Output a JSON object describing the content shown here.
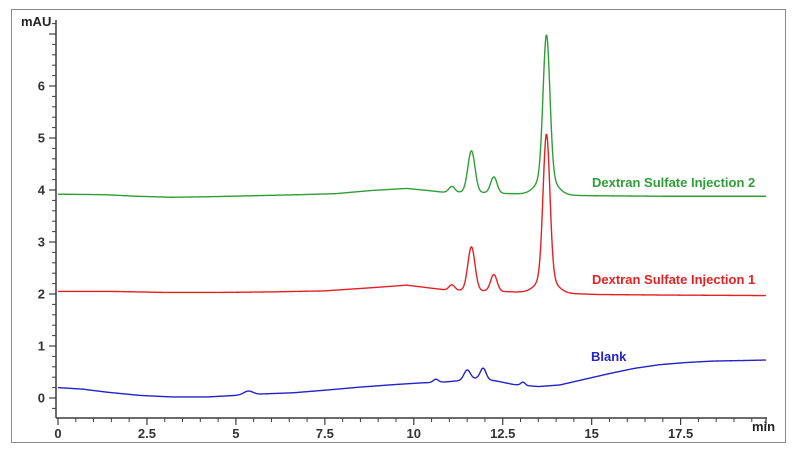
{
  "figure": {
    "background": "#ffffff",
    "border_color": "#8a8a8a",
    "axis_color": "#3c3c3c",
    "tick_label_color": "#333333"
  },
  "chart_data": {
    "type": "line",
    "title": "",
    "xlabel": "min",
    "ylabel": "mAU",
    "x_range": [
      0,
      19.9
    ],
    "y_range": [
      -0.4,
      7.3
    ],
    "grid": false,
    "legend_position": "inline-right-of-trace",
    "x_axis": {
      "major_ticks": [
        0,
        2.5,
        5,
        7.5,
        10,
        12.5,
        15,
        17.5
      ],
      "tick_labels": [
        "0",
        "2.5",
        "5",
        "7.5",
        "10",
        "12.5",
        "15",
        "17.5"
      ],
      "minor_step": 0.5,
      "end_tick": 19.9
    },
    "y_axis": {
      "major_ticks": [
        0,
        1,
        2,
        3,
        4,
        5,
        6,
        7
      ],
      "tick_labels": [
        "0",
        "1",
        "2",
        "3",
        "4",
        "5",
        "6",
        ""
      ],
      "minor_step": 0.2
    },
    "series": [
      {
        "name": "dextran-sulfate-injection-2",
        "label": "Dextran Sulfate Injection 2",
        "color": "#2f9e38",
        "baseline_offset_mAU": 3.9,
        "main_peak": {
          "retention_min": 13.73,
          "apex_mAU": 7.0
        },
        "baseline_points": [
          [
            0,
            3.92
          ],
          [
            1.3,
            3.91
          ],
          [
            2.2,
            3.88
          ],
          [
            3.2,
            3.86
          ],
          [
            4.2,
            3.87
          ],
          [
            5.5,
            3.89
          ],
          [
            6.8,
            3.91
          ],
          [
            7.8,
            3.93
          ],
          [
            8.8,
            3.99
          ],
          [
            9.8,
            4.03
          ],
          [
            10.4,
            3.99
          ],
          [
            10.8,
            3.96
          ],
          [
            11.3,
            3.96
          ],
          [
            12.0,
            3.95
          ],
          [
            12.7,
            3.93
          ],
          [
            13.3,
            3.92
          ],
          [
            14.2,
            3.9
          ],
          [
            15.0,
            3.89
          ],
          [
            17.0,
            3.88
          ],
          [
            19.9,
            3.88
          ]
        ],
        "peaks": [
          {
            "center": 11.07,
            "height": 0.11,
            "sigma": 0.08
          },
          {
            "center": 11.62,
            "height": 0.8,
            "sigma": 0.1
          },
          {
            "center": 12.25,
            "height": 0.31,
            "sigma": 0.09
          },
          {
            "center": 13.73,
            "height": 2.72,
            "sigma": 0.095
          },
          {
            "center": 13.73,
            "height": 0.36,
            "sigma": 0.26
          }
        ]
      },
      {
        "name": "dextran-sulfate-injection-1",
        "label": "Dextran Sulfate Injection 1",
        "color": "#e32124",
        "baseline_offset_mAU": 2.0,
        "main_peak": {
          "retention_min": 13.73,
          "apex_mAU": 5.1
        },
        "baseline_points": [
          [
            0,
            2.05
          ],
          [
            1.5,
            2.05
          ],
          [
            3.0,
            2.03
          ],
          [
            4.5,
            2.03
          ],
          [
            6.0,
            2.04
          ],
          [
            7.5,
            2.06
          ],
          [
            8.8,
            2.12
          ],
          [
            9.8,
            2.17
          ],
          [
            10.4,
            2.12
          ],
          [
            10.9,
            2.08
          ],
          [
            11.4,
            2.07
          ],
          [
            12.1,
            2.06
          ],
          [
            12.8,
            2.04
          ],
          [
            13.4,
            2.03
          ],
          [
            14.3,
            2.01
          ],
          [
            15.2,
            1.99
          ],
          [
            17.0,
            1.98
          ],
          [
            19.9,
            1.97
          ]
        ],
        "peaks": [
          {
            "center": 11.07,
            "height": 0.1,
            "sigma": 0.08
          },
          {
            "center": 11.62,
            "height": 0.84,
            "sigma": 0.1
          },
          {
            "center": 12.25,
            "height": 0.32,
            "sigma": 0.09
          },
          {
            "center": 13.73,
            "height": 2.75,
            "sigma": 0.095
          },
          {
            "center": 13.73,
            "height": 0.31,
            "sigma": 0.26
          }
        ]
      },
      {
        "name": "blank",
        "label": "Blank",
        "color": "#2323c8",
        "baseline_offset_mAU": 0.2,
        "main_peak": {
          "retention_min": 11.95,
          "apex_mAU": 0.58
        },
        "baseline_points": [
          [
            0,
            0.2
          ],
          [
            0.7,
            0.17
          ],
          [
            1.4,
            0.11
          ],
          [
            2.3,
            0.05
          ],
          [
            3.2,
            0.02
          ],
          [
            4.2,
            0.02
          ],
          [
            5.0,
            0.05
          ],
          [
            5.8,
            0.08
          ],
          [
            6.6,
            0.1
          ],
          [
            7.5,
            0.15
          ],
          [
            8.5,
            0.21
          ],
          [
            9.5,
            0.26
          ],
          [
            10.2,
            0.29
          ],
          [
            10.9,
            0.31
          ],
          [
            11.4,
            0.34
          ],
          [
            11.8,
            0.38
          ],
          [
            12.3,
            0.33
          ],
          [
            12.8,
            0.26
          ],
          [
            13.5,
            0.22
          ],
          [
            14.1,
            0.25
          ],
          [
            14.8,
            0.36
          ],
          [
            15.5,
            0.47
          ],
          [
            16.2,
            0.57
          ],
          [
            16.9,
            0.64
          ],
          [
            17.6,
            0.68
          ],
          [
            18.4,
            0.71
          ],
          [
            19.2,
            0.72
          ],
          [
            19.9,
            0.73
          ]
        ],
        "peaks": [
          {
            "center": 5.35,
            "height": 0.07,
            "sigma": 0.13
          },
          {
            "center": 10.62,
            "height": 0.06,
            "sigma": 0.07
          },
          {
            "center": 11.5,
            "height": 0.19,
            "sigma": 0.09
          },
          {
            "center": 11.95,
            "height": 0.21,
            "sigma": 0.08
          },
          {
            "center": 13.07,
            "height": 0.06,
            "sigma": 0.06
          }
        ]
      }
    ]
  }
}
